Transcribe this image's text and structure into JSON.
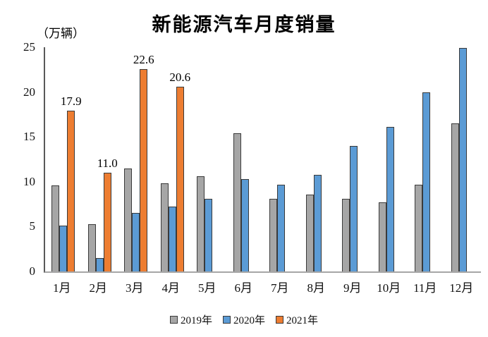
{
  "chart_data": {
    "type": "bar",
    "title": "新能源汽车月度销量",
    "unit_label": "（万辆）",
    "categories": [
      "1月",
      "2月",
      "3月",
      "4月",
      "5月",
      "6月",
      "7月",
      "8月",
      "9月",
      "10月",
      "11月",
      "12月"
    ],
    "series": [
      {
        "name": "2019年",
        "color": "#A6A6A6",
        "values": [
          9.6,
          5.3,
          11.5,
          9.8,
          10.6,
          15.4,
          8.1,
          8.6,
          8.1,
          7.7,
          9.7,
          16.5
        ]
      },
      {
        "name": "2020年",
        "color": "#5B9BD5",
        "values": [
          5.1,
          1.5,
          6.5,
          7.2,
          8.1,
          10.3,
          9.7,
          10.8,
          14.0,
          16.1,
          20.0,
          24.9
        ]
      },
      {
        "name": "2021年",
        "color": "#ED7D31",
        "values": [
          17.9,
          11.0,
          22.6,
          20.6,
          null,
          null,
          null,
          null,
          null,
          null,
          null,
          null
        ],
        "data_labels": [
          "17.9",
          "11.0",
          "22.6",
          "20.6"
        ]
      }
    ],
    "ylim": [
      0,
      25
    ],
    "y_ticks": [
      0,
      5,
      10,
      15,
      20,
      25
    ],
    "grid": false,
    "legend_position": "bottom",
    "bar_outline_color": "#3a3a3a",
    "y_axis_color": "#595959",
    "x_axis_color": "#a6a6a6"
  }
}
